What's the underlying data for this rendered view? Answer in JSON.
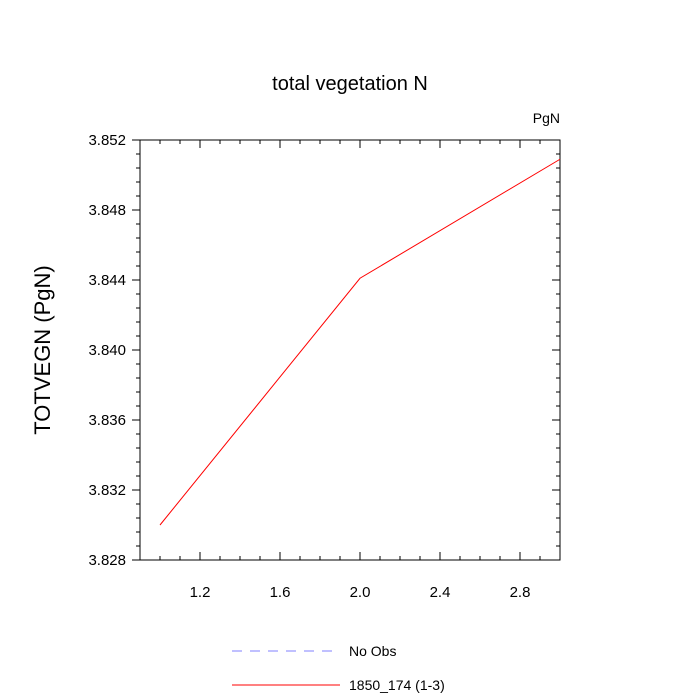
{
  "chart_data": {
    "type": "line",
    "title": "total vegetation N",
    "units_label": "PgN",
    "xlabel": "",
    "ylabel": "TOTVEGN  (PgN)",
    "xlim": [
      0.9,
      3.0
    ],
    "ylim": [
      3.828,
      3.852
    ],
    "x_ticks": [
      "1.2",
      "1.6",
      "2.0",
      "2.4",
      "2.8"
    ],
    "y_ticks": [
      "3.828",
      "3.832",
      "3.836",
      "3.840",
      "3.844",
      "3.848",
      "3.852"
    ],
    "grid": false,
    "legend_position": "bottom",
    "series": [
      {
        "name": "No Obs",
        "color": "#8080ff",
        "line_style": "dashed",
        "x": [],
        "y": []
      },
      {
        "name": "1850_174 (1-3)",
        "color": "#ff0000",
        "line_style": "solid",
        "x": [
          1.0,
          2.0,
          3.0
        ],
        "y": [
          3.83,
          3.8441,
          3.8509
        ]
      }
    ]
  }
}
